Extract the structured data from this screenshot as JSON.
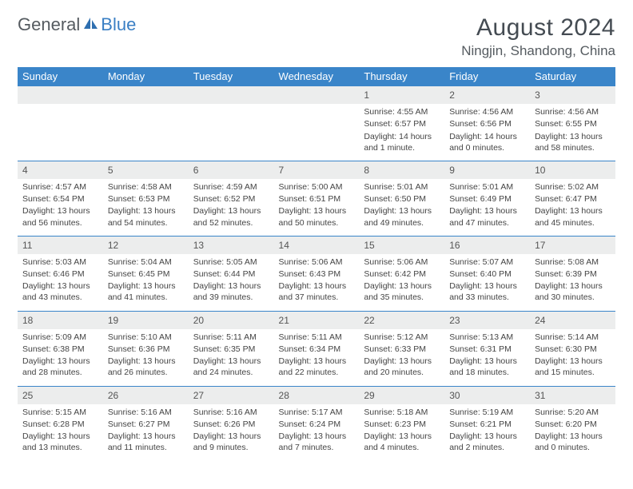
{
  "logo": {
    "word1": "General",
    "word2": "Blue"
  },
  "title": "August 2024",
  "location": "Ningjin, Shandong, China",
  "colors": {
    "header_bg": "#3a85c9",
    "header_text": "#ffffff",
    "daynum_bg": "#eceded",
    "text": "#444b52",
    "logo_gray": "#555b60",
    "logo_blue": "#3a7fc4",
    "border": "#3a85c9"
  },
  "fonts": {
    "title_size": 30,
    "location_size": 17,
    "header_size": 13,
    "daynum_size": 12,
    "cell_size": 10.5
  },
  "day_names": [
    "Sunday",
    "Monday",
    "Tuesday",
    "Wednesday",
    "Thursday",
    "Friday",
    "Saturday"
  ],
  "weeks": [
    [
      null,
      null,
      null,
      null,
      {
        "n": "1",
        "sr": "Sunrise: 4:55 AM",
        "ss": "Sunset: 6:57 PM",
        "dl": "Daylight: 14 hours and 1 minute."
      },
      {
        "n": "2",
        "sr": "Sunrise: 4:56 AM",
        "ss": "Sunset: 6:56 PM",
        "dl": "Daylight: 14 hours and 0 minutes."
      },
      {
        "n": "3",
        "sr": "Sunrise: 4:56 AM",
        "ss": "Sunset: 6:55 PM",
        "dl": "Daylight: 13 hours and 58 minutes."
      }
    ],
    [
      {
        "n": "4",
        "sr": "Sunrise: 4:57 AM",
        "ss": "Sunset: 6:54 PM",
        "dl": "Daylight: 13 hours and 56 minutes."
      },
      {
        "n": "5",
        "sr": "Sunrise: 4:58 AM",
        "ss": "Sunset: 6:53 PM",
        "dl": "Daylight: 13 hours and 54 minutes."
      },
      {
        "n": "6",
        "sr": "Sunrise: 4:59 AM",
        "ss": "Sunset: 6:52 PM",
        "dl": "Daylight: 13 hours and 52 minutes."
      },
      {
        "n": "7",
        "sr": "Sunrise: 5:00 AM",
        "ss": "Sunset: 6:51 PM",
        "dl": "Daylight: 13 hours and 50 minutes."
      },
      {
        "n": "8",
        "sr": "Sunrise: 5:01 AM",
        "ss": "Sunset: 6:50 PM",
        "dl": "Daylight: 13 hours and 49 minutes."
      },
      {
        "n": "9",
        "sr": "Sunrise: 5:01 AM",
        "ss": "Sunset: 6:49 PM",
        "dl": "Daylight: 13 hours and 47 minutes."
      },
      {
        "n": "10",
        "sr": "Sunrise: 5:02 AM",
        "ss": "Sunset: 6:47 PM",
        "dl": "Daylight: 13 hours and 45 minutes."
      }
    ],
    [
      {
        "n": "11",
        "sr": "Sunrise: 5:03 AM",
        "ss": "Sunset: 6:46 PM",
        "dl": "Daylight: 13 hours and 43 minutes."
      },
      {
        "n": "12",
        "sr": "Sunrise: 5:04 AM",
        "ss": "Sunset: 6:45 PM",
        "dl": "Daylight: 13 hours and 41 minutes."
      },
      {
        "n": "13",
        "sr": "Sunrise: 5:05 AM",
        "ss": "Sunset: 6:44 PM",
        "dl": "Daylight: 13 hours and 39 minutes."
      },
      {
        "n": "14",
        "sr": "Sunrise: 5:06 AM",
        "ss": "Sunset: 6:43 PM",
        "dl": "Daylight: 13 hours and 37 minutes."
      },
      {
        "n": "15",
        "sr": "Sunrise: 5:06 AM",
        "ss": "Sunset: 6:42 PM",
        "dl": "Daylight: 13 hours and 35 minutes."
      },
      {
        "n": "16",
        "sr": "Sunrise: 5:07 AM",
        "ss": "Sunset: 6:40 PM",
        "dl": "Daylight: 13 hours and 33 minutes."
      },
      {
        "n": "17",
        "sr": "Sunrise: 5:08 AM",
        "ss": "Sunset: 6:39 PM",
        "dl": "Daylight: 13 hours and 30 minutes."
      }
    ],
    [
      {
        "n": "18",
        "sr": "Sunrise: 5:09 AM",
        "ss": "Sunset: 6:38 PM",
        "dl": "Daylight: 13 hours and 28 minutes."
      },
      {
        "n": "19",
        "sr": "Sunrise: 5:10 AM",
        "ss": "Sunset: 6:36 PM",
        "dl": "Daylight: 13 hours and 26 minutes."
      },
      {
        "n": "20",
        "sr": "Sunrise: 5:11 AM",
        "ss": "Sunset: 6:35 PM",
        "dl": "Daylight: 13 hours and 24 minutes."
      },
      {
        "n": "21",
        "sr": "Sunrise: 5:11 AM",
        "ss": "Sunset: 6:34 PM",
        "dl": "Daylight: 13 hours and 22 minutes."
      },
      {
        "n": "22",
        "sr": "Sunrise: 5:12 AM",
        "ss": "Sunset: 6:33 PM",
        "dl": "Daylight: 13 hours and 20 minutes."
      },
      {
        "n": "23",
        "sr": "Sunrise: 5:13 AM",
        "ss": "Sunset: 6:31 PM",
        "dl": "Daylight: 13 hours and 18 minutes."
      },
      {
        "n": "24",
        "sr": "Sunrise: 5:14 AM",
        "ss": "Sunset: 6:30 PM",
        "dl": "Daylight: 13 hours and 15 minutes."
      }
    ],
    [
      {
        "n": "25",
        "sr": "Sunrise: 5:15 AM",
        "ss": "Sunset: 6:28 PM",
        "dl": "Daylight: 13 hours and 13 minutes."
      },
      {
        "n": "26",
        "sr": "Sunrise: 5:16 AM",
        "ss": "Sunset: 6:27 PM",
        "dl": "Daylight: 13 hours and 11 minutes."
      },
      {
        "n": "27",
        "sr": "Sunrise: 5:16 AM",
        "ss": "Sunset: 6:26 PM",
        "dl": "Daylight: 13 hours and 9 minutes."
      },
      {
        "n": "28",
        "sr": "Sunrise: 5:17 AM",
        "ss": "Sunset: 6:24 PM",
        "dl": "Daylight: 13 hours and 7 minutes."
      },
      {
        "n": "29",
        "sr": "Sunrise: 5:18 AM",
        "ss": "Sunset: 6:23 PM",
        "dl": "Daylight: 13 hours and 4 minutes."
      },
      {
        "n": "30",
        "sr": "Sunrise: 5:19 AM",
        "ss": "Sunset: 6:21 PM",
        "dl": "Daylight: 13 hours and 2 minutes."
      },
      {
        "n": "31",
        "sr": "Sunrise: 5:20 AM",
        "ss": "Sunset: 6:20 PM",
        "dl": "Daylight: 13 hours and 0 minutes."
      }
    ]
  ]
}
